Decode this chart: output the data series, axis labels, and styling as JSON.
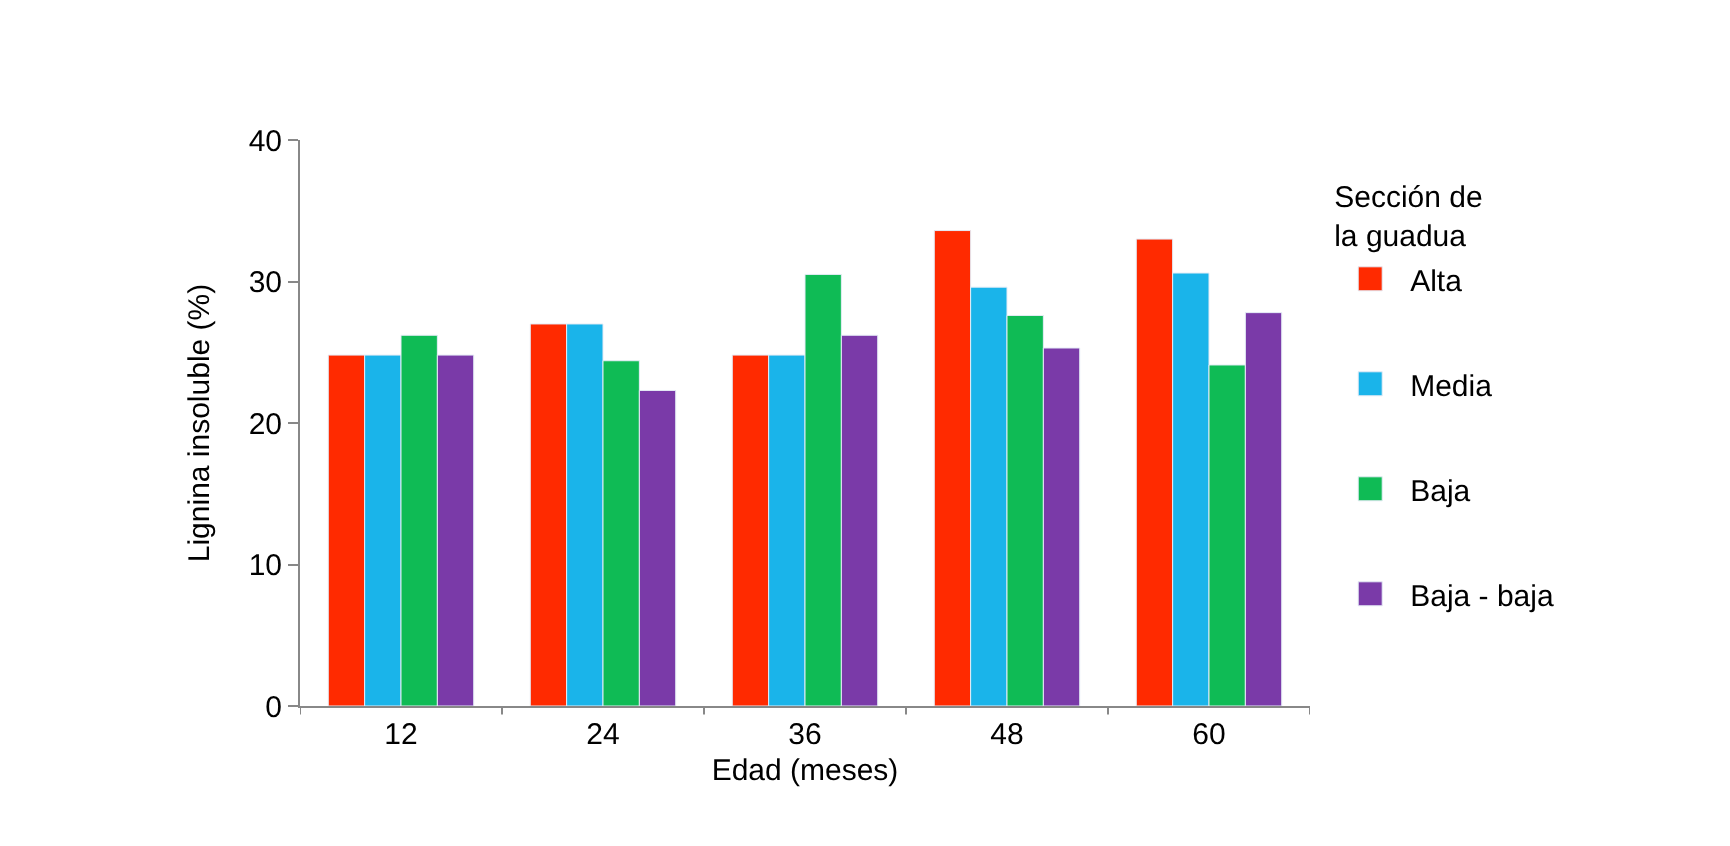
{
  "chart_data": {
    "type": "bar",
    "xlabel": "Edad (meses)",
    "ylabel": "Lignina insoluble (%)",
    "legend_title": "Sección de la guadua",
    "categories": [
      "12",
      "24",
      "36",
      "48",
      "60"
    ],
    "series": [
      {
        "name": "Alta",
        "color": "#ff2a00",
        "values": [
          24.8,
          27.0,
          24.8,
          33.6,
          33.0
        ]
      },
      {
        "name": "Media",
        "color": "#1ab4ea",
        "values": [
          24.8,
          27.0,
          24.8,
          29.6,
          30.6
        ]
      },
      {
        "name": "Baja",
        "color": "#0fbb55",
        "values": [
          26.2,
          24.4,
          30.5,
          27.6,
          24.1
        ]
      },
      {
        "name": "Baja - baja",
        "color": "#7a3aa8",
        "values": [
          24.8,
          22.3,
          26.2,
          25.3,
          27.8
        ]
      }
    ],
    "ylim": [
      0,
      40
    ],
    "yticks": [
      0,
      10,
      20,
      30,
      40
    ],
    "legend": "right"
  }
}
